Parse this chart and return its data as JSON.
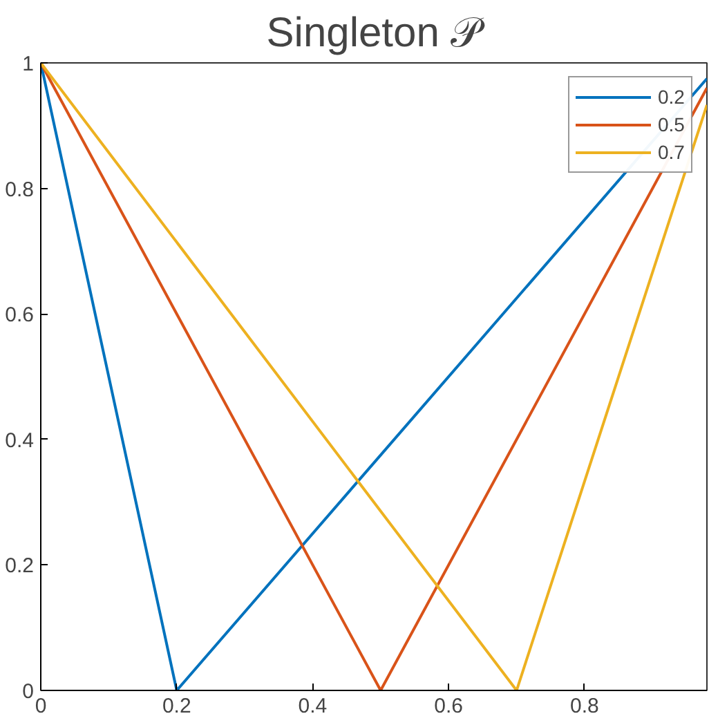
{
  "chart_data": {
    "type": "line",
    "title": "Singleton 𝒫",
    "xlim": [
      0,
      0.98
    ],
    "ylim": [
      0,
      1
    ],
    "xticks": [
      0,
      0.2,
      0.4,
      0.6,
      0.8
    ],
    "yticks": [
      0,
      0.2,
      0.4,
      0.6,
      0.8,
      1
    ],
    "grid": false,
    "legend": "top right",
    "line_style": "solid",
    "marker": "none",
    "series": [
      {
        "name": "0.2",
        "color": "#0072bd",
        "x": [
          0,
          0.2,
          0.98
        ],
        "values": [
          1,
          0,
          0.975
        ]
      },
      {
        "name": "0.5",
        "color": "#d95319",
        "x": [
          0,
          0.5,
          0.98
        ],
        "values": [
          1,
          0,
          0.96
        ]
      },
      {
        "name": "0.7",
        "color": "#edb120",
        "x": [
          0,
          0.7,
          0.98
        ],
        "values": [
          1,
          0,
          0.933
        ]
      }
    ]
  }
}
